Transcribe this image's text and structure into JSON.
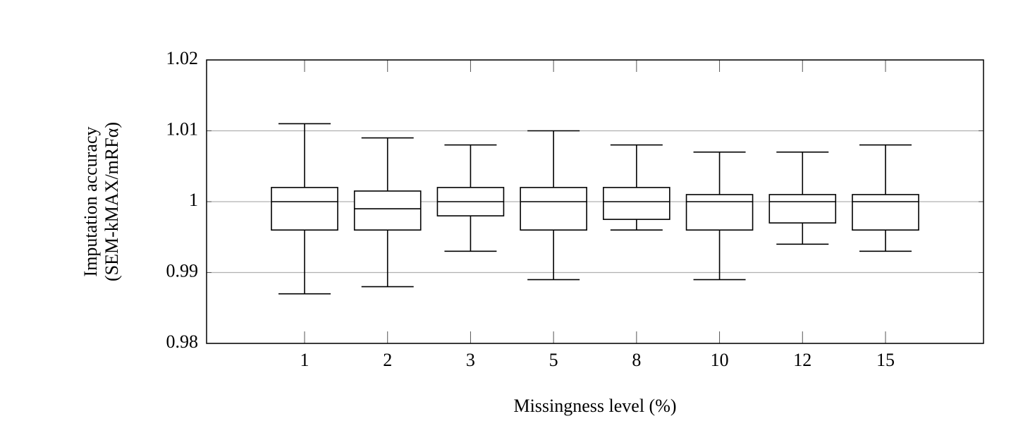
{
  "chart_data": {
    "type": "box",
    "x_label": "Missingness level (%)",
    "y_label": [
      "Imputation accuracy",
      "(SEM-kMAX/mRFα)"
    ],
    "categories": [
      "1",
      "2",
      "3",
      "5",
      "8",
      "10",
      "12",
      "15"
    ],
    "boxes": [
      {
        "whislo": 0.987,
        "q1": 0.996,
        "med": 1.0,
        "q3": 1.002,
        "whishi": 1.011
      },
      {
        "whislo": 0.988,
        "q1": 0.996,
        "med": 0.999,
        "q3": 1.0015,
        "whishi": 1.009
      },
      {
        "whislo": 0.993,
        "q1": 0.998,
        "med": 1.0,
        "q3": 1.002,
        "whishi": 1.008
      },
      {
        "whislo": 0.989,
        "q1": 0.996,
        "med": 1.0,
        "q3": 1.002,
        "whishi": 1.01
      },
      {
        "whislo": 0.996,
        "q1": 0.9975,
        "med": 1.0,
        "q3": 1.002,
        "whishi": 1.008
      },
      {
        "whislo": 0.989,
        "q1": 0.996,
        "med": 1.0,
        "q3": 1.001,
        "whishi": 1.007
      },
      {
        "whislo": 0.994,
        "q1": 0.997,
        "med": 1.0,
        "q3": 1.001,
        "whishi": 1.007
      },
      {
        "whislo": 0.993,
        "q1": 0.996,
        "med": 1.0,
        "q3": 1.001,
        "whishi": 1.008
      }
    ],
    "ylim": [
      0.98,
      1.02
    ],
    "yticks": [
      0.98,
      0.99,
      1,
      1.01,
      1.02
    ],
    "grid": true
  }
}
